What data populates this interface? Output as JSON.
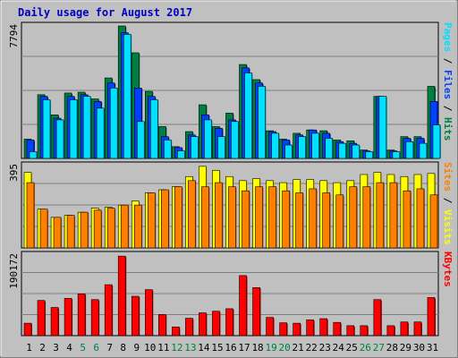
{
  "title": "Daily usage for August 2017",
  "colors": {
    "background": "#c0c0c0",
    "title": "#0000c0",
    "hits": "#008040",
    "files": "#0040ff",
    "pages": "#00e0ff",
    "visits": "#ffff00",
    "sites": "#ff8000",
    "kbytes": "#ff0000",
    "weekend_day_label": "#008040"
  },
  "chart_data": [
    {
      "type": "bar",
      "panel": "hits-files-pages",
      "title": "",
      "ylabel_max": "7794",
      "ylim": [
        0,
        7794
      ],
      "grid": true,
      "legend_parts": [
        "Pages",
        "Files",
        "Hits"
      ],
      "legend_separator": " / ",
      "x": [
        "1",
        "2",
        "3",
        "4",
        "5",
        "6",
        "7",
        "8",
        "9",
        "10",
        "11",
        "12",
        "13",
        "14",
        "15",
        "16",
        "17",
        "18",
        "19",
        "20",
        "21",
        "22",
        "23",
        "24",
        "25",
        "26",
        "27",
        "28",
        "29",
        "30",
        "31"
      ],
      "series": [
        {
          "name": "Hits",
          "values": [
            1150,
            3800,
            2600,
            3900,
            3950,
            3550,
            4800,
            7900,
            6300,
            4000,
            1900,
            700,
            1600,
            3200,
            1900,
            2700,
            5600,
            4700,
            1650,
            1150,
            1500,
            1700,
            1650,
            1100,
            1050,
            500,
            3700,
            500,
            1300,
            1300,
            4300
          ]
        },
        {
          "name": "Files",
          "values": [
            1100,
            3700,
            2400,
            3700,
            3800,
            3400,
            4500,
            7500,
            4200,
            3700,
            1300,
            650,
            1400,
            2600,
            1800,
            2300,
            5400,
            4500,
            1600,
            1100,
            1400,
            1700,
            1500,
            1000,
            900,
            450,
            3700,
            450,
            1200,
            1200,
            3400
          ]
        },
        {
          "name": "Pages",
          "values": [
            400,
            3500,
            2300,
            3500,
            3700,
            3000,
            4200,
            7400,
            2200,
            3500,
            1100,
            450,
            1300,
            2300,
            1300,
            2200,
            5100,
            4300,
            1500,
            800,
            1300,
            1500,
            1200,
            900,
            800,
            400,
            3700,
            400,
            1000,
            900,
            2000
          ]
        }
      ]
    },
    {
      "type": "bar",
      "panel": "visits-sites",
      "title": "",
      "ylabel_max": "395",
      "ylim": [
        0,
        395
      ],
      "grid": true,
      "legend_parts": [
        "Sites",
        "Visits"
      ],
      "legend_separator": " / ",
      "x": [
        "1",
        "2",
        "3",
        "4",
        "5",
        "6",
        "7",
        "8",
        "9",
        "10",
        "11",
        "12",
        "13",
        "14",
        "15",
        "16",
        "17",
        "18",
        "19",
        "20",
        "21",
        "22",
        "23",
        "24",
        "25",
        "26",
        "27",
        "28",
        "29",
        "30",
        "31"
      ],
      "series": [
        {
          "name": "Visits",
          "values": [
            370,
            190,
            150,
            160,
            175,
            195,
            200,
            210,
            230,
            270,
            285,
            300,
            350,
            400,
            380,
            350,
            330,
            340,
            330,
            320,
            335,
            335,
            330,
            320,
            330,
            360,
            370,
            360,
            350,
            360,
            365
          ]
        },
        {
          "name": "Sites",
          "values": [
            320,
            190,
            150,
            160,
            175,
            185,
            195,
            210,
            210,
            270,
            285,
            300,
            330,
            300,
            320,
            300,
            280,
            300,
            300,
            280,
            270,
            290,
            270,
            260,
            300,
            300,
            320,
            320,
            280,
            290,
            260
          ]
        }
      ]
    },
    {
      "type": "bar",
      "panel": "kbytes",
      "title": "",
      "ylabel_max": "190172",
      "ylim": [
        0,
        190172
      ],
      "grid": true,
      "legend_parts": [
        "KBytes"
      ],
      "legend_separator": " / ",
      "x": [
        "1",
        "2",
        "3",
        "4",
        "5",
        "6",
        "7",
        "8",
        "9",
        "10",
        "11",
        "12",
        "13",
        "14",
        "15",
        "16",
        "17",
        "18",
        "19",
        "20",
        "21",
        "22",
        "23",
        "24",
        "25",
        "26",
        "27",
        "28",
        "29",
        "30",
        "31"
      ],
      "weekend_days": [
        "5",
        "6",
        "12",
        "13",
        "19",
        "20",
        "26",
        "27"
      ],
      "series": [
        {
          "name": "KBytes",
          "values": [
            30000,
            85000,
            68000,
            90000,
            101000,
            87000,
            123000,
            192000,
            95000,
            111000,
            51000,
            21000,
            42000,
            55000,
            59000,
            65000,
            145000,
            116000,
            44000,
            31000,
            30000,
            38000,
            41000,
            32000,
            24000,
            24000,
            87000,
            24000,
            33000,
            33000,
            92000
          ]
        }
      ]
    }
  ]
}
